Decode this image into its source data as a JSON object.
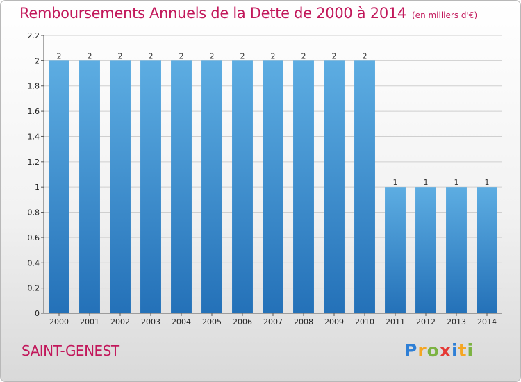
{
  "header": {
    "title": "Remboursements Annuels de la Dette de 2000 à 2014",
    "unit": "(en milliers d'€)"
  },
  "footer": {
    "place": "SAINT-GENEST"
  },
  "logo": {
    "text": "Proxiti",
    "letters": [
      {
        "ch": "P",
        "color": "#2e7fd6"
      },
      {
        "ch": "r",
        "color": "#f5a623"
      },
      {
        "ch": "o",
        "color": "#7cb342"
      },
      {
        "ch": "x",
        "color": "#e53935"
      },
      {
        "ch": "i",
        "color": "#2e7fd6"
      },
      {
        "ch": "t",
        "color": "#f5a623"
      },
      {
        "ch": "i",
        "color": "#7cb342"
      }
    ]
  },
  "colors": {
    "bar_top": "#5dade2",
    "bar_bottom": "#2471b8",
    "title": "#c2185b"
  },
  "chart_data": {
    "type": "bar",
    "title": "Remboursements Annuels de la Dette de 2000 à 2014",
    "subtitle": "(en milliers d'€)",
    "xlabel": "",
    "ylabel": "",
    "categories": [
      "2000",
      "2001",
      "2002",
      "2003",
      "2004",
      "2005",
      "2006",
      "2007",
      "2008",
      "2009",
      "2010",
      "2011",
      "2012",
      "2013",
      "2014"
    ],
    "values": [
      2,
      2,
      2,
      2,
      2,
      2,
      2,
      2,
      2,
      2,
      2,
      1,
      1,
      1,
      1
    ],
    "data_labels": [
      "2",
      "2",
      "2",
      "2",
      "2",
      "2",
      "2",
      "2",
      "2",
      "2",
      "2",
      "1",
      "1",
      "1",
      "1"
    ],
    "ylim": [
      0,
      2.2
    ],
    "yticks": [
      0,
      0.2,
      0.4,
      0.6,
      0.8,
      1,
      1.2,
      1.4,
      1.6,
      1.8,
      2,
      2.2
    ],
    "ytick_labels": [
      "0",
      "0.2",
      "0.4",
      "0.6",
      "0.8",
      "1",
      "1.2",
      "1.4",
      "1.6",
      "1.8",
      "2",
      "2.2"
    ],
    "grid": true
  }
}
